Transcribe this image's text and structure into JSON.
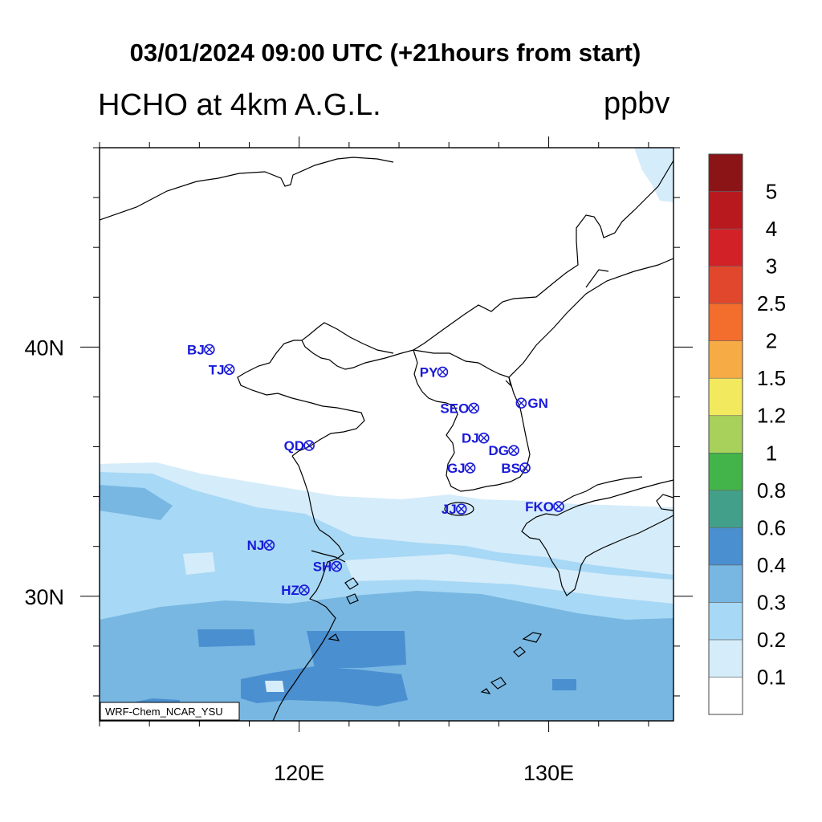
{
  "title": "03/01/2024 09:00 UTC (+21hours from start)",
  "variable_title": "HCHO at 4km A.G.L.",
  "unit": "ppbv",
  "credit": "WRF-Chem_NCAR_YSU",
  "axes": {
    "lon_range": [
      112,
      135
    ],
    "lat_range": [
      25,
      48
    ],
    "x_ticks": [
      {
        "value": 120,
        "label": "120E"
      },
      {
        "value": 130,
        "label": "130E"
      }
    ],
    "y_ticks": [
      {
        "value": 30,
        "label": "30N"
      },
      {
        "value": 40,
        "label": "40N"
      }
    ]
  },
  "colorbar": {
    "levels": [
      "0.1",
      "0.2",
      "0.3",
      "0.4",
      "0.6",
      "0.8",
      "1",
      "1.2",
      "1.5",
      "2",
      "2.5",
      "3",
      "4",
      "5"
    ],
    "colors": [
      "#ffffff",
      "#d5ecfa",
      "#a7d8f5",
      "#78b7e2",
      "#4a8fd0",
      "#42a08a",
      "#42b449",
      "#a7d15a",
      "#f3e95f",
      "#f6ab45",
      "#f36d2c",
      "#e0472d",
      "#d32128",
      "#b8191f",
      "#8b1417"
    ]
  },
  "sites": [
    {
      "code": "BJ",
      "lon": 116.4,
      "lat": 39.9,
      "label_side": "left"
    },
    {
      "code": "TJ",
      "lon": 117.2,
      "lat": 39.1,
      "label_side": "left"
    },
    {
      "code": "PY",
      "lon": 125.75,
      "lat": 39.0,
      "label_side": "left"
    },
    {
      "code": "SEO",
      "lon": 127.0,
      "lat": 37.55,
      "label_side": "left"
    },
    {
      "code": "GN",
      "lon": 128.9,
      "lat": 37.75,
      "label_side": "right"
    },
    {
      "code": "QD",
      "lon": 120.4,
      "lat": 36.05,
      "label_side": "left"
    },
    {
      "code": "DJ",
      "lon": 127.4,
      "lat": 36.35,
      "label_side": "left"
    },
    {
      "code": "DG",
      "lon": 128.6,
      "lat": 35.85,
      "label_side": "left"
    },
    {
      "code": "GJ",
      "lon": 126.85,
      "lat": 35.15,
      "label_side": "left"
    },
    {
      "code": "BS",
      "lon": 129.05,
      "lat": 35.15,
      "label_side": "left"
    },
    {
      "code": "FKO",
      "lon": 130.4,
      "lat": 33.6,
      "label_side": "left"
    },
    {
      "code": "JJ",
      "lon": 126.5,
      "lat": 33.5,
      "label_side": "left"
    },
    {
      "code": "NJ",
      "lon": 118.8,
      "lat": 32.05,
      "label_side": "left"
    },
    {
      "code": "SH",
      "lon": 121.5,
      "lat": 31.2,
      "label_side": "left"
    },
    {
      "code": "HZ",
      "lon": 120.2,
      "lat": 30.25,
      "label_side": "left"
    }
  ]
}
